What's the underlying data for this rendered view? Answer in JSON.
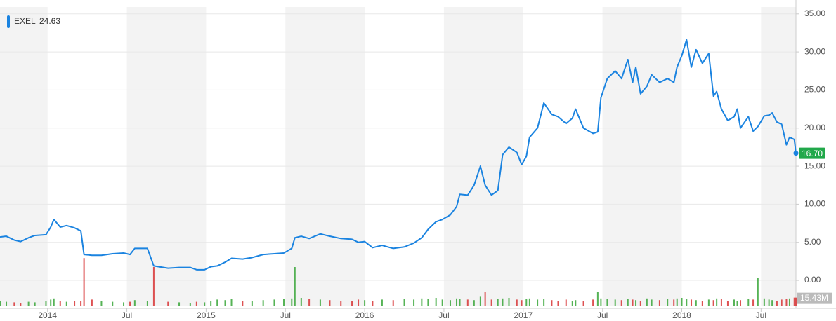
{
  "chart_data": {
    "type": "line",
    "series": [
      {
        "name": "EXEL",
        "color": "#1a83e0",
        "x": [
          2013.7,
          2013.74,
          2013.79,
          2013.83,
          2013.88,
          2013.92,
          2013.99,
          2014.02,
          2014.04,
          2014.08,
          2014.12,
          2014.17,
          2014.21,
          2014.23,
          2014.28,
          2014.34,
          2014.41,
          2014.48,
          2014.52,
          2014.55,
          2014.63,
          2014.67,
          2014.76,
          2014.83,
          2014.9,
          2014.94,
          2014.99,
          2015.03,
          2015.07,
          2015.12,
          2015.16,
          2015.23,
          2015.29,
          2015.36,
          2015.43,
          2015.49,
          2015.54,
          2015.56,
          2015.6,
          2015.65,
          2015.72,
          2015.78,
          2015.85,
          2015.92,
          2015.96,
          2016.0,
          2016.05,
          2016.11,
          2016.18,
          2016.25,
          2016.31,
          2016.36,
          2016.4,
          2016.45,
          2016.49,
          2016.54,
          2016.58,
          2016.6,
          2016.65,
          2016.69,
          2016.73,
          2016.76,
          2016.8,
          2016.84,
          2016.87,
          2016.91,
          2016.96,
          2016.99,
          2017.02,
          2017.04,
          2017.09,
          2017.13,
          2017.18,
          2017.22,
          2017.27,
          2017.31,
          2017.33,
          2017.38,
          2017.44,
          2017.47,
          2017.49,
          2017.53,
          2017.58,
          2017.62,
          2017.66,
          2017.69,
          2017.71,
          2017.74,
          2017.78,
          2017.81,
          2017.86,
          2017.91,
          2017.95,
          2017.97,
          2018.0,
          2018.03,
          2018.06,
          2018.09,
          2018.13,
          2018.17,
          2018.2,
          2018.22,
          2018.25,
          2018.29,
          2018.33,
          2018.35,
          2018.37,
          2018.42,
          2018.45,
          2018.48,
          2018.52,
          2018.55,
          2018.57,
          2018.6,
          2018.63,
          2018.66,
          2018.68,
          2018.71,
          2018.72
        ],
        "values": [
          5.7,
          5.8,
          5.3,
          5.1,
          5.6,
          5.9,
          6.0,
          7.0,
          8.0,
          7.0,
          7.2,
          6.9,
          6.5,
          3.4,
          3.3,
          3.3,
          3.5,
          3.6,
          3.4,
          4.2,
          4.2,
          1.9,
          1.6,
          1.7,
          1.7,
          1.4,
          1.4,
          1.8,
          1.9,
          2.4,
          2.9,
          2.8,
          3.0,
          3.4,
          3.5,
          3.6,
          4.2,
          5.6,
          5.8,
          5.5,
          6.1,
          5.8,
          5.5,
          5.4,
          5.0,
          5.1,
          4.3,
          4.6,
          4.2,
          4.4,
          4.9,
          5.6,
          6.7,
          7.7,
          8.0,
          8.6,
          9.7,
          11.3,
          11.2,
          12.5,
          15.0,
          12.5,
          11.2,
          11.8,
          16.5,
          17.5,
          16.8,
          15.2,
          16.3,
          18.8,
          20.0,
          23.3,
          21.8,
          21.5,
          20.6,
          21.3,
          22.5,
          20.0,
          19.3,
          19.5,
          24.0,
          26.5,
          27.5,
          26.5,
          29.0,
          26.0,
          28.0,
          24.5,
          25.5,
          27.0,
          26.0,
          26.5,
          26.0,
          28.0,
          29.5,
          31.6,
          28.0,
          30.3,
          28.5,
          29.8,
          24.2,
          24.8,
          22.5,
          21.0,
          21.5,
          22.5,
          20.0,
          21.5,
          19.6,
          20.2,
          21.6,
          21.7,
          22.0,
          20.8,
          20.5,
          17.8,
          18.8,
          18.5,
          16.7
        ]
      }
    ],
    "volume": {
      "values": [
        9,
        8,
        7,
        6,
        8,
        7,
        10,
        12,
        14,
        9,
        8,
        9,
        10,
        86,
        12,
        9,
        8,
        7,
        8,
        11,
        9,
        70,
        8,
        7,
        6,
        8,
        7,
        10,
        12,
        11,
        13,
        9,
        10,
        11,
        12,
        13,
        14,
        70,
        15,
        13,
        12,
        11,
        10,
        9,
        12,
        11,
        10,
        12,
        11,
        13,
        12,
        14,
        13,
        15,
        12,
        11,
        14,
        13,
        12,
        11,
        17,
        25,
        12,
        13,
        14,
        15,
        12,
        11,
        13,
        14,
        12,
        13,
        11,
        10,
        12,
        9,
        11,
        10,
        12,
        25,
        14,
        13,
        12,
        11,
        13,
        12,
        11,
        10,
        14,
        12,
        11,
        13,
        12,
        14,
        15,
        13,
        12,
        11,
        10,
        12,
        11,
        14,
        13,
        9,
        12,
        10,
        11,
        13,
        12,
        50,
        14,
        12,
        11,
        10,
        12,
        13,
        14,
        15.43,
        15.43
      ]
    },
    "y2lim": [
      0,
      100
    ],
    "up_color": "#2ca02c",
    "down_color": "#d62728",
    "legend_value": 24.63,
    "last_price": {
      "value": 16.7,
      "label": "16.70"
    },
    "last_volume": {
      "value": 15.43,
      "label": "15.43M"
    },
    "xlim": [
      2013.7,
      2018.72
    ],
    "xticks": [
      {
        "value": 2014,
        "label": "2014"
      },
      {
        "value": 2014.5,
        "label": "Jul"
      },
      {
        "value": 2015,
        "label": "2015"
      },
      {
        "value": 2015.5,
        "label": "Jul"
      },
      {
        "value": 2016,
        "label": "2016"
      },
      {
        "value": 2016.5,
        "label": "Jul"
      },
      {
        "value": 2017,
        "label": "2017"
      },
      {
        "value": 2017.5,
        "label": "Jul"
      },
      {
        "value": 2018,
        "label": "2018"
      },
      {
        "value": 2018.5,
        "label": "Jul"
      }
    ],
    "ylim": [
      -3.4,
      35.9
    ],
    "yticks": [
      {
        "value": 0,
        "label": "0.00"
      },
      {
        "value": 5,
        "label": "5.00"
      },
      {
        "value": 10,
        "label": "10.00"
      },
      {
        "value": 15,
        "label": "15.00"
      },
      {
        "value": 20,
        "label": "20.00"
      },
      {
        "value": 25,
        "label": "25.00"
      },
      {
        "value": 30,
        "label": "30.00"
      },
      {
        "value": 35,
        "label": "35.00"
      }
    ],
    "grid": true,
    "shade_alternate": true
  }
}
